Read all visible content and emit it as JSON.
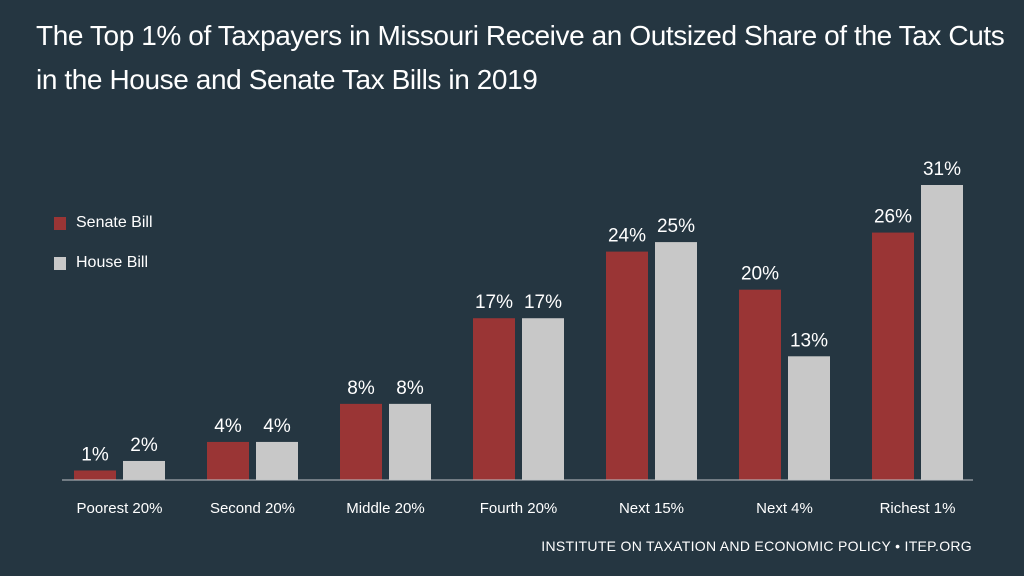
{
  "colors": {
    "background": "#253641",
    "senate": "#9a3535",
    "house": "#c8c8c8",
    "axis": "#bfc3c6",
    "text": "#ffffff"
  },
  "chart_data": {
    "type": "bar",
    "title_lines": [
      "The Top 1% of Taxpayers in Missouri Receive an Outsized Share of the Tax Cuts",
      "in the House and Senate Tax Bills in 2019"
    ],
    "categories": [
      "Poorest 20%",
      "Second 20%",
      "Middle 20%",
      "Fourth 20%",
      "Next 15%",
      "Next 4%",
      "Richest 1%"
    ],
    "series": [
      {
        "name": "Senate Bill",
        "values": [
          1,
          4,
          8,
          17,
          24,
          20,
          26
        ],
        "labels": [
          "1%",
          "4%",
          "8%",
          "17%",
          "24%",
          "20%",
          "26%"
        ]
      },
      {
        "name": "House Bill",
        "values": [
          2,
          4,
          8,
          17,
          25,
          13,
          31
        ],
        "labels": [
          "2%",
          "4%",
          "8%",
          "17%",
          "25%",
          "13%",
          "31%"
        ]
      }
    ],
    "ylim": [
      0,
      31
    ],
    "xlabel": "",
    "ylabel": "",
    "legend_position": "top-left",
    "source": "INSTITUTE ON TAXATION AND ECONOMIC POLICY • ITEP.ORG"
  }
}
